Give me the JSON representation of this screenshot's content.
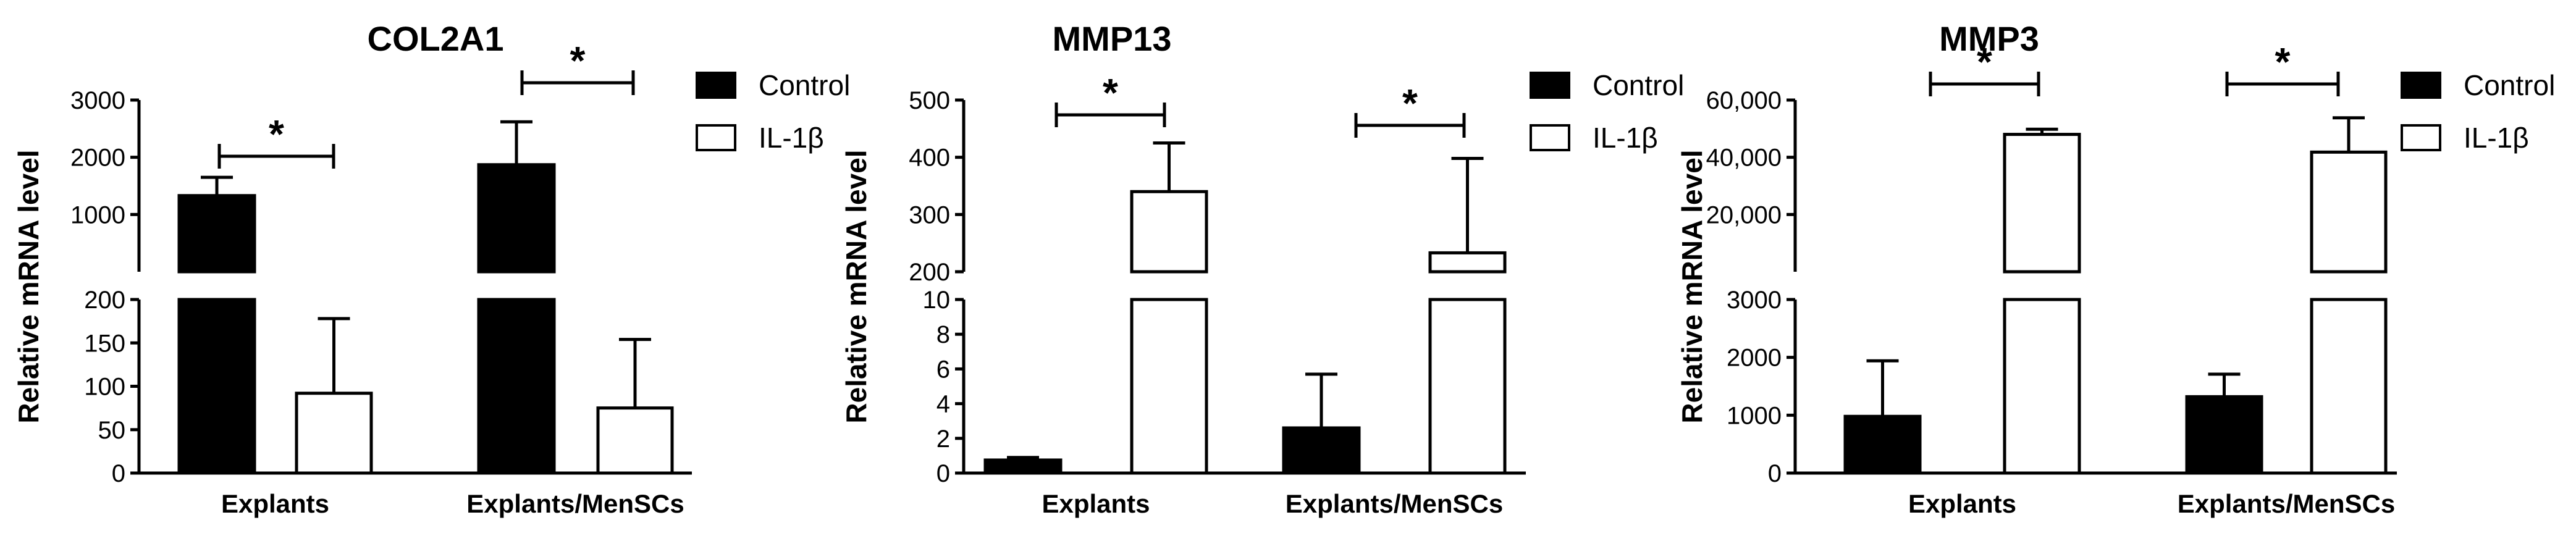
{
  "chart_data": [
    {
      "type": "bar",
      "title": "COL2A1",
      "ylabel": "Relative mRNA level",
      "categories": [
        "Explants",
        "Explants/MenSCs"
      ],
      "series": [
        {
          "name": "Control",
          "values": [
            1330,
            1870
          ],
          "error": [
            320,
            750
          ]
        },
        {
          "name": "IL-1β",
          "values": [
            92,
            75
          ],
          "error": [
            86,
            79
          ]
        }
      ],
      "axis_break": {
        "lower": {
          "range": [
            0,
            200
          ],
          "ticks": [
            0,
            50,
            100,
            150,
            200
          ]
        },
        "upper": {
          "range": [
            0,
            3000
          ],
          "ticks": [
            1000,
            2000,
            3000
          ]
        }
      },
      "significance": [
        "*",
        "*"
      ],
      "grid": false,
      "legend": "right"
    },
    {
      "type": "bar",
      "title": "MMP13",
      "ylabel": "Relative mRNA level",
      "categories": [
        "Explants",
        "Explants/MenSCs"
      ],
      "series": [
        {
          "name": "Control",
          "values": [
            0.75,
            2.6
          ],
          "error": [
            0.15,
            3.1
          ]
        },
        {
          "name": "IL-1β",
          "values": [
            340,
            233
          ],
          "error": [
            85,
            165
          ]
        }
      ],
      "axis_break": {
        "lower": {
          "range": [
            0,
            10
          ],
          "ticks": [
            0,
            2,
            4,
            6,
            8,
            10
          ]
        },
        "upper": {
          "range": [
            200,
            500
          ],
          "ticks": [
            200,
            300,
            400,
            500
          ]
        }
      },
      "significance": [
        "*",
        "*"
      ],
      "grid": false,
      "legend": "right"
    },
    {
      "type": "bar",
      "title": "MMP3",
      "ylabel": "Relative mRNA level",
      "categories": [
        "Explants",
        "Explants/MenSCs"
      ],
      "series": [
        {
          "name": "Control",
          "values": [
            980,
            1320
          ],
          "error": [
            960,
            390
          ]
        },
        {
          "name": "IL-1β",
          "values": [
            48000,
            41800
          ],
          "error": [
            1800,
            12000
          ]
        }
      ],
      "axis_break": {
        "lower": {
          "range": [
            0,
            3000
          ],
          "ticks": [
            0,
            1000,
            2000,
            3000
          ]
        },
        "upper": {
          "range": [
            0,
            60000
          ],
          "ticks": [
            "20,000",
            "40,000",
            "60,000"
          ],
          "tick_values": [
            20000,
            40000,
            60000
          ]
        }
      },
      "significance": [
        "*",
        "*"
      ],
      "grid": false,
      "legend": "right"
    }
  ],
  "colors": {
    "control": "#000000",
    "il1b": "#ffffff",
    "stroke": "#000000"
  }
}
